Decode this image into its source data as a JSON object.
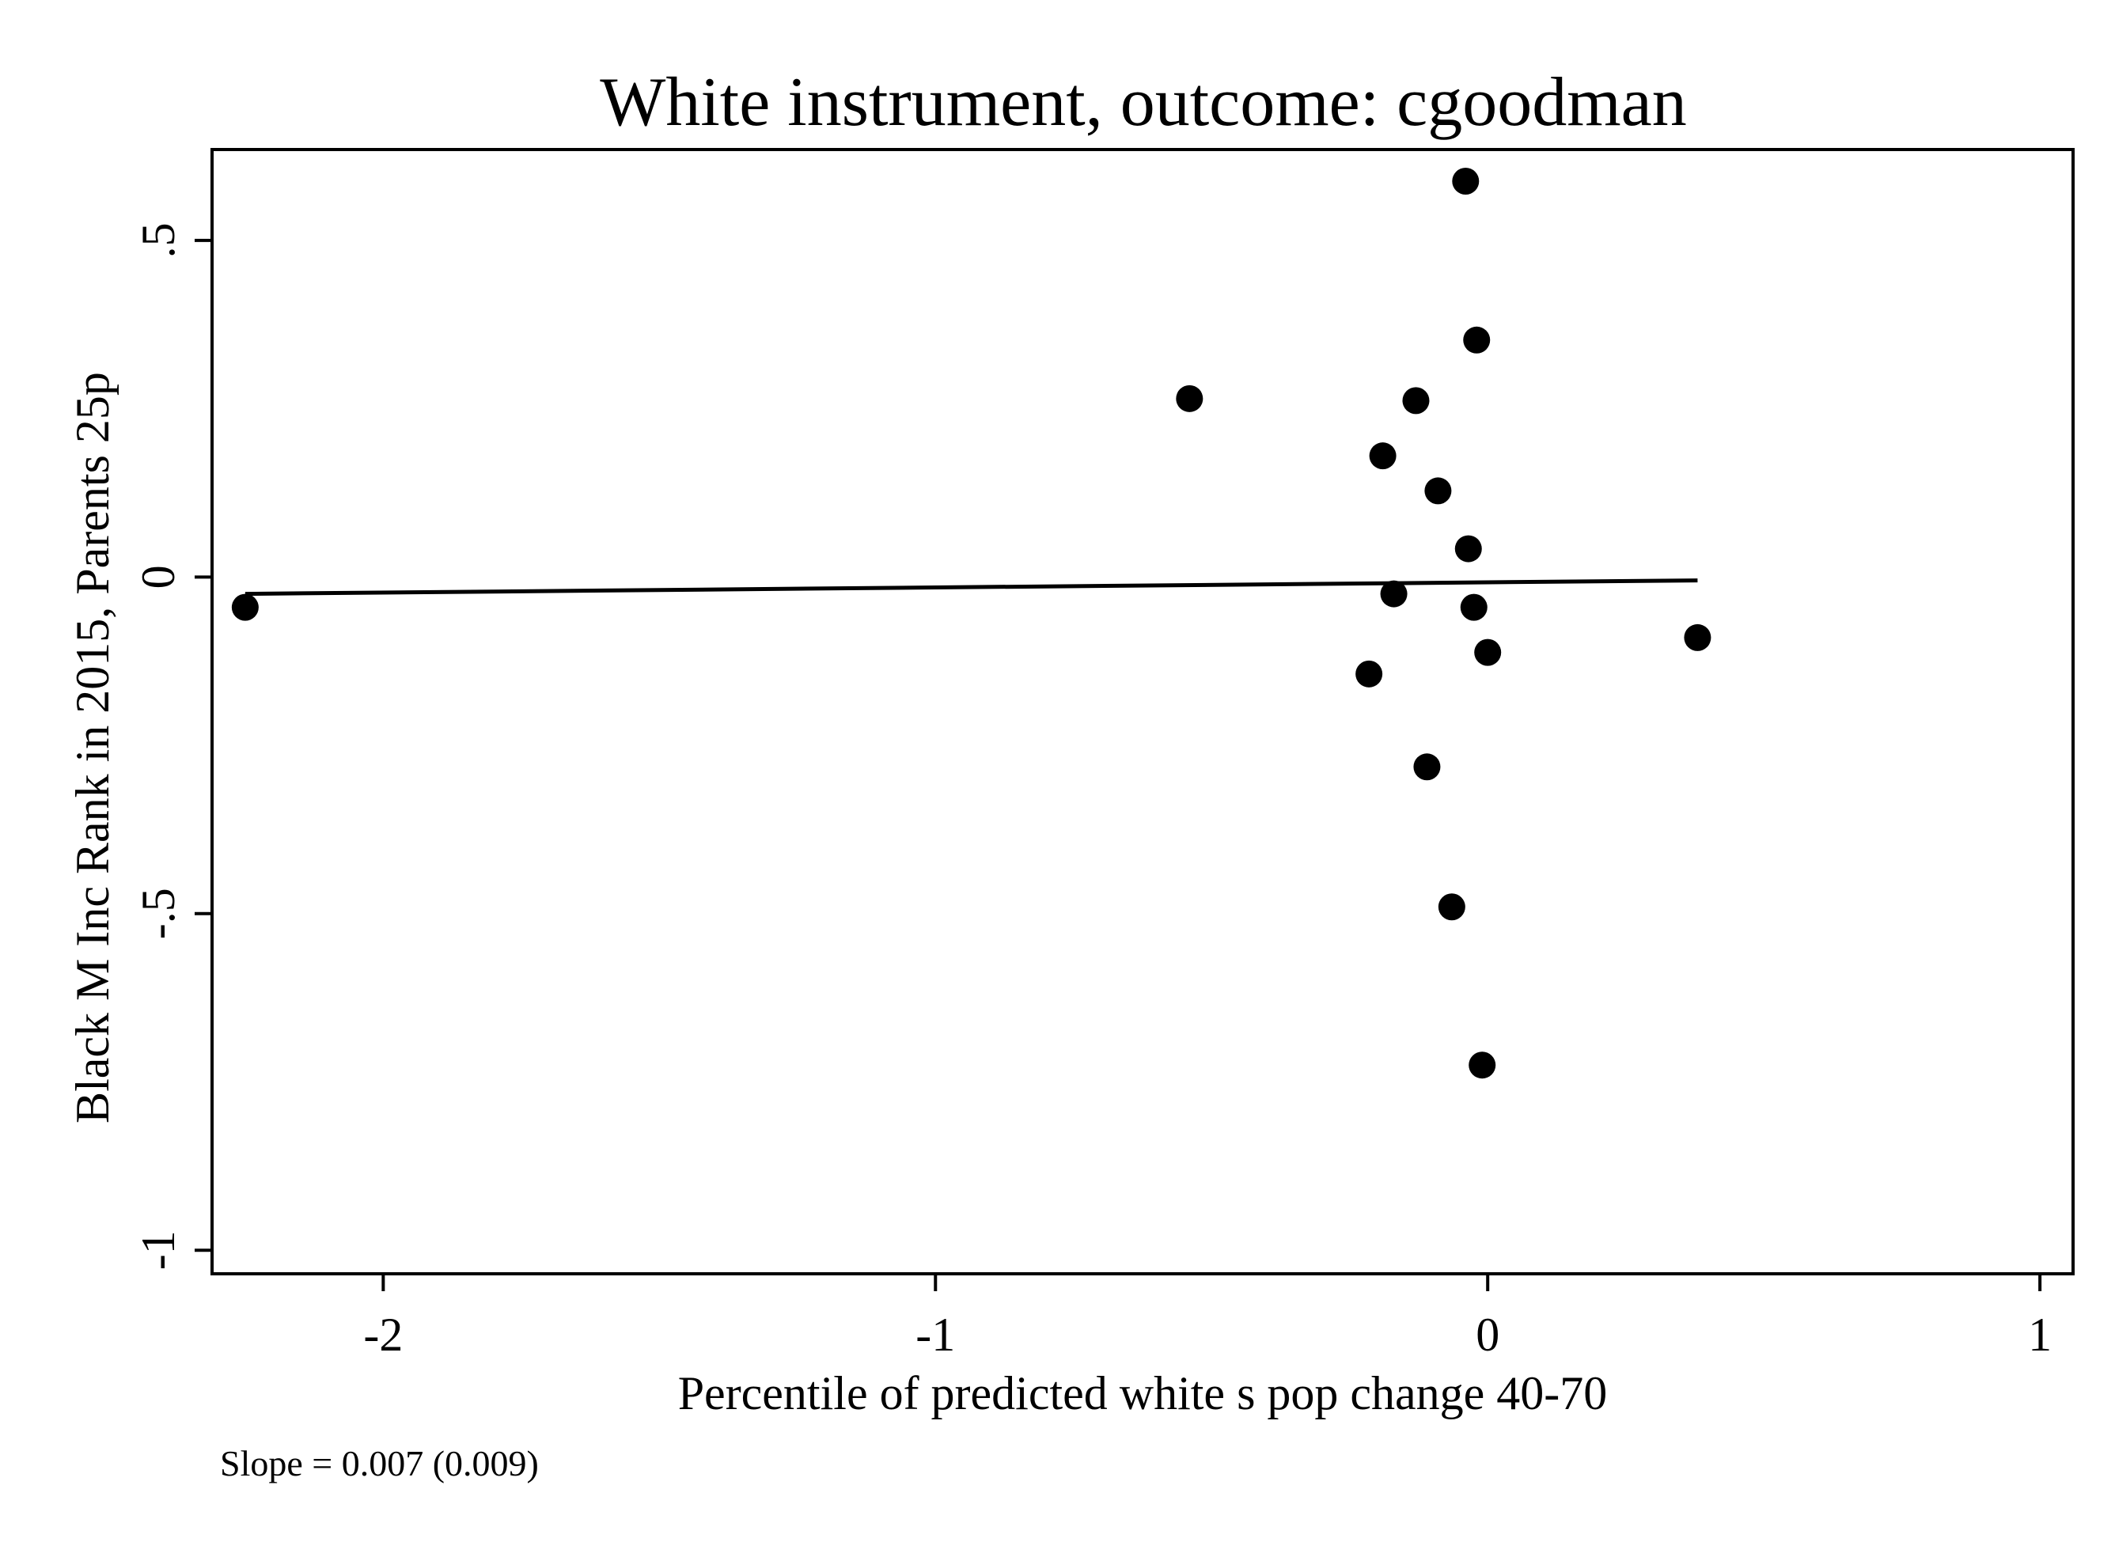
{
  "chart_data": {
    "type": "scatter",
    "title": "White instrument, outcome: cgoodman",
    "xlabel": "Percentile of predicted white s pop change 40-70",
    "ylabel": "Black M Inc Rank in 2015, Parents 25p",
    "xlim": [
      -2.31,
      1.06
    ],
    "ylim": [
      -1.035,
      0.635
    ],
    "xticks": [
      {
        "value": -2,
        "label": "-2"
      },
      {
        "value": -1,
        "label": "-1"
      },
      {
        "value": 0,
        "label": "0"
      },
      {
        "value": 1,
        "label": "1"
      }
    ],
    "yticks": [
      {
        "value": -1,
        "label": "-1"
      },
      {
        "value": -0.5,
        "label": "-.5"
      },
      {
        "value": 0,
        "label": "0"
      },
      {
        "value": 0.5,
        "label": ".5"
      }
    ],
    "grid": false,
    "legend": false,
    "points": [
      {
        "x": -2.25,
        "y": -0.045
      },
      {
        "x": -0.54,
        "y": 0.265
      },
      {
        "x": -0.04,
        "y": 0.588
      },
      {
        "x": -0.02,
        "y": 0.352
      },
      {
        "x": -0.13,
        "y": 0.262
      },
      {
        "x": -0.19,
        "y": 0.18
      },
      {
        "x": -0.09,
        "y": 0.128
      },
      {
        "x": -0.035,
        "y": 0.042
      },
      {
        "x": -0.17,
        "y": -0.025
      },
      {
        "x": -0.025,
        "y": -0.045
      },
      {
        "x": 0.0,
        "y": -0.112
      },
      {
        "x": 0.38,
        "y": -0.09
      },
      {
        "x": -0.215,
        "y": -0.144
      },
      {
        "x": -0.11,
        "y": -0.282
      },
      {
        "x": -0.065,
        "y": -0.49
      },
      {
        "x": -0.01,
        "y": -0.725
      }
    ],
    "fit_line": {
      "x": [
        -2.25,
        0.38
      ],
      "y": [
        -0.025,
        -0.005
      ]
    },
    "annotation": "Slope = 0.007 (0.009)",
    "colors": {
      "points": "#000000",
      "line": "#000000",
      "frame": "#000000"
    }
  }
}
